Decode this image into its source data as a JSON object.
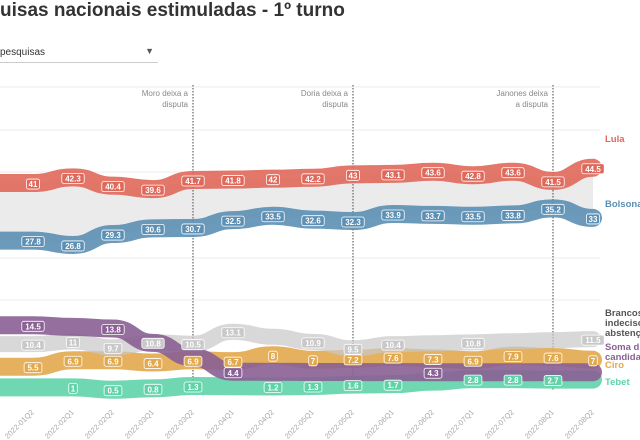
{
  "title": "uisas nacionais estimuladas - 1º turno",
  "dropdown": {
    "value": "pesquisas",
    "icon": "caret-down-icon"
  },
  "chart_data": {
    "type": "line",
    "categories": [
      "2022-01Q2",
      "2022-02Q1",
      "2022-02Q2",
      "2022-03Q1",
      "2022-03Q2",
      "2022-04Q1",
      "2022-04Q2",
      "2022-05Q1",
      "2022-05Q2",
      "2022-06Q1",
      "2022-06Q2",
      "2022-07Q1",
      "2022-07Q2",
      "2022-08Q1",
      "2022-08Q2"
    ],
    "annotations": [
      {
        "text": [
          "Moro deixa a",
          "disputa"
        ],
        "at": "2022-03Q2"
      },
      {
        "text": [
          "Doria deixa a",
          "disputa"
        ],
        "at": "2022-05Q2"
      },
      {
        "text": [
          "Janones deixa",
          "a disputa"
        ],
        "at": "2022-08Q1"
      }
    ],
    "series": [
      {
        "name": "Lula",
        "legend": [
          "Lula"
        ],
        "color": "#e0685a",
        "values": [
          41,
          42.3,
          40.4,
          39.6,
          41.7,
          41.8,
          42,
          42.2,
          43,
          43.1,
          43.6,
          42.8,
          43.6,
          41.5,
          44.5
        ]
      },
      {
        "name": "Bolsonaro",
        "legend": [
          "Bolsona"
        ],
        "color": "#5b8fb4",
        "values": [
          27.8,
          26.8,
          29.3,
          30.6,
          30.7,
          32.5,
          33.5,
          32.6,
          32.3,
          33.9,
          33.7,
          33.5,
          33.8,
          35.2,
          33
        ]
      },
      {
        "name": "Brancos, indecisos, abstenções",
        "legend": [
          "Brancos",
          "indecisos",
          "abstenç"
        ],
        "color": "#c8c8c8",
        "values": [
          10.4,
          11,
          9.7,
          10.8,
          10.5,
          13.1,
          null,
          10.9,
          9.5,
          10.4,
          null,
          10.8,
          null,
          null,
          11.5
        ]
      },
      {
        "name": "Soma demais candidatos",
        "legend": [
          "Soma d",
          "candida"
        ],
        "color": "#8a6095",
        "values": [
          14.5,
          null,
          13.8,
          null,
          null,
          4.4,
          null,
          null,
          null,
          null,
          4.3,
          null,
          null,
          null,
          null
        ]
      },
      {
        "name": "Ciro",
        "legend": [
          "Ciro"
        ],
        "color": "#e2a84c",
        "values": [
          5.5,
          6.9,
          6.9,
          6.4,
          6.9,
          6.7,
          8,
          7,
          7.2,
          7.6,
          7.3,
          6.9,
          7.9,
          7.6,
          7
        ]
      },
      {
        "name": "Tebet",
        "legend": [
          "Tebet"
        ],
        "color": "#5fd3a8",
        "values": [
          null,
          1,
          0.5,
          0.8,
          1.3,
          null,
          1.2,
          1.3,
          1.6,
          1.7,
          null,
          2.8,
          2.8,
          2.7,
          null
        ]
      }
    ],
    "grid": true,
    "legend": "right"
  }
}
